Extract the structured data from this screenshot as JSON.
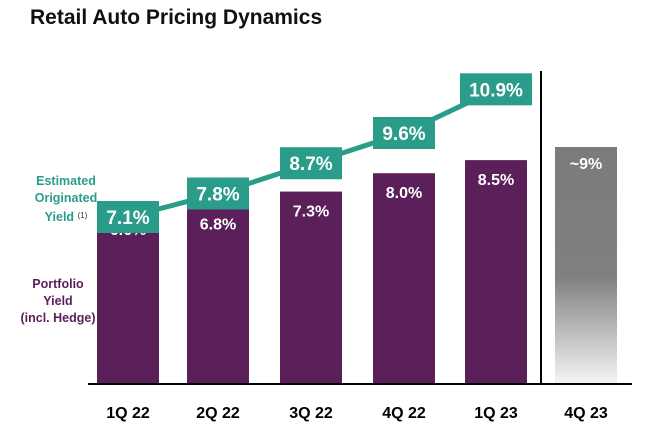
{
  "title": "Retail Auto Pricing Dynamics",
  "labels": {
    "originated": "Estimated Originated Yield",
    "originated_lines": [
      "Estimated",
      "Originated",
      "Yield"
    ],
    "footnote": "(1)",
    "portfolio_lines": [
      "Portfolio",
      "Yield",
      "(incl. Hedge)"
    ]
  },
  "colors": {
    "bar": "#5b1f5a",
    "forecast_bar": "#7b7b7b",
    "line": "#2a9d8a",
    "bar_label": "#ffffff",
    "axis": "#000000"
  },
  "chart_data": {
    "type": "bar",
    "categories": [
      "1Q 22",
      "2Q 22",
      "3Q 22",
      "4Q 22",
      "1Q 23",
      "4Q 23"
    ],
    "series": [
      {
        "name": "Portfolio Yield (incl. Hedge)",
        "type": "bar",
        "values": [
          6.6,
          6.8,
          7.3,
          8.0,
          8.5,
          9.0
        ],
        "labels": [
          "6.6%",
          "6.8%",
          "7.3%",
          "8.0%",
          "8.5%",
          "~9%"
        ]
      },
      {
        "name": "Estimated Originated Yield",
        "type": "line",
        "values": [
          7.1,
          7.8,
          8.7,
          9.6,
          10.9,
          null
        ],
        "labels": [
          "7.1%",
          "7.8%",
          "8.7%",
          "9.6%",
          "10.9%",
          null
        ]
      }
    ],
    "forecast_category": "4Q 23",
    "title": "Retail Auto Pricing Dynamics"
  }
}
